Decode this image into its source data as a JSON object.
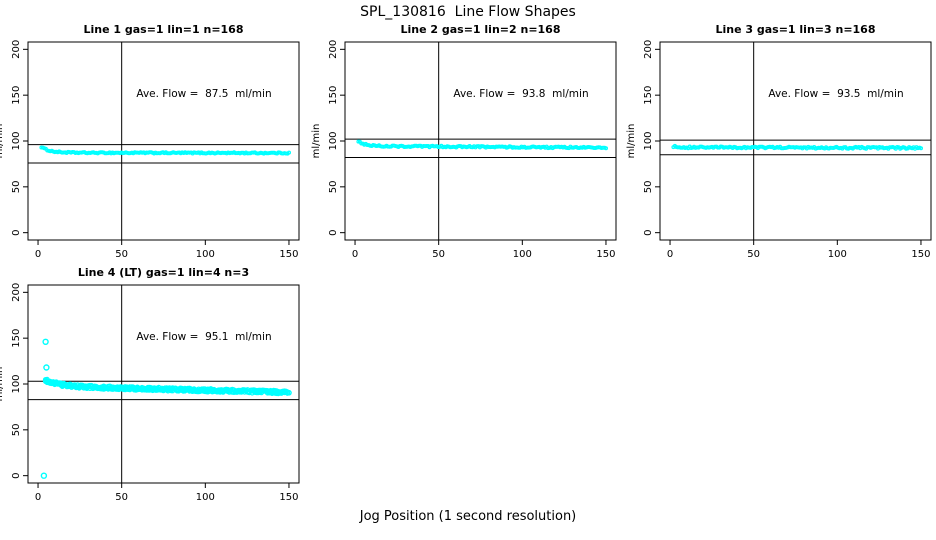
{
  "page": {
    "title": "SPL_130816  Line Flow Shapes",
    "xlabel": "Jog Position (1 second resolution)"
  },
  "chart_data": {
    "type": "scatter",
    "title": "SPL_130816  Line Flow Shapes",
    "xlabel": "Jog Position (1 second resolution)",
    "ylabel": "ml/min",
    "x_ticks": [
      0,
      50,
      100,
      150
    ],
    "y_ticks": [
      0,
      50,
      100,
      150,
      200
    ],
    "xlim": [
      -6,
      156
    ],
    "ylim": [
      -8,
      208
    ],
    "grid": false,
    "point_color": "#00FFFF",
    "point_style": "open-circle",
    "panels": [
      {
        "title": "Line 1 gas=1 lin=1 n=168",
        "ave_flow_label": "Ave. Flow =  87.5  ml/min",
        "ave_flow": 87.5,
        "n": 168,
        "ref_v": 50,
        "ref_h": [
          96,
          76
        ],
        "band": {
          "x0": 2,
          "x1": 150,
          "n": 168,
          "start": 93.5,
          "settle": 87.2,
          "decay": 5,
          "drift": -0.3,
          "noise": 0.7,
          "repeat": 1,
          "r": 1.4
        },
        "outliers": []
      },
      {
        "title": "Line 2 gas=1 lin=2 n=168",
        "ave_flow_label": "Ave. Flow =  93.8  ml/min",
        "ave_flow": 93.8,
        "n": 168,
        "ref_v": 50,
        "ref_h": [
          102,
          82
        ],
        "band": {
          "x0": 2,
          "x1": 150,
          "n": 168,
          "start": 100,
          "settle": 94.5,
          "decay": 4,
          "drift": -1.8,
          "noise": 0.9,
          "repeat": 1,
          "r": 1.4
        },
        "outliers": []
      },
      {
        "title": "Line 3 gas=1 lin=3 n=168",
        "ave_flow_label": "Ave. Flow =  93.5  ml/min",
        "ave_flow": 93.5,
        "n": 168,
        "ref_v": 50,
        "ref_h": [
          101,
          85
        ],
        "band": {
          "x0": 2,
          "x1": 150,
          "n": 168,
          "start": 94,
          "settle": 93.2,
          "decay": 3,
          "drift": -0.8,
          "noise": 1.0,
          "repeat": 1,
          "r": 1.4
        },
        "outliers": []
      },
      {
        "title": "Line 4 (LT) gas=1 lin=4 n=3",
        "ave_flow_label": "Ave. Flow =  95.1  ml/min",
        "ave_flow": 95.1,
        "n": 3,
        "ref_v": 50,
        "ref_h": [
          103,
          83
        ],
        "band": {
          "x0": 4.5,
          "x1": 150,
          "n": 160,
          "start": 104,
          "settle": 97.5,
          "decay": 9,
          "drift": -6.5,
          "noise": 1.7,
          "repeat": 3,
          "r": 2.1
        },
        "outliers": [
          [
            3.5,
            0
          ],
          [
            4.5,
            146
          ],
          [
            5,
            118
          ]
        ]
      }
    ]
  }
}
